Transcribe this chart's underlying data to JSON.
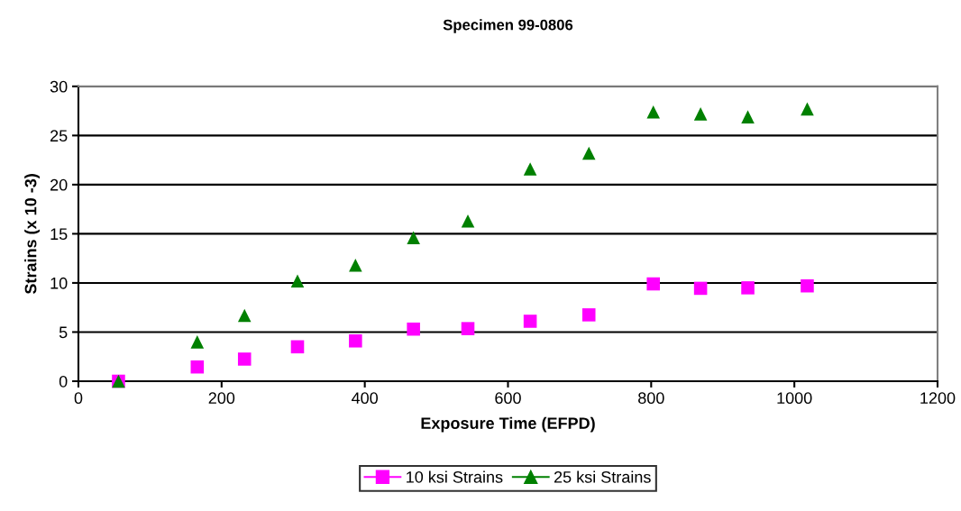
{
  "chart_data": {
    "type": "scatter",
    "title": "Specimen 99-0806",
    "xlabel": "Exposure Time (EFPD)",
    "ylabel": "Strains (x 10 -3)",
    "xlim": [
      0,
      1200
    ],
    "xticks": [
      0,
      200,
      400,
      600,
      800,
      1000,
      1200
    ],
    "ylim": [
      0,
      30
    ],
    "yticks": [
      0,
      5,
      10,
      15,
      20,
      25,
      30
    ],
    "grid": "y",
    "legend": "bottom",
    "series": [
      {
        "name": "10 ksi Strains",
        "color": "#ff00ff",
        "marker": "square",
        "x": [
          56,
          166,
          232,
          306,
          387,
          468,
          544,
          631,
          713,
          803,
          869,
          935,
          1018
        ],
        "values": [
          0,
          1.45,
          2.25,
          3.5,
          4.1,
          5.3,
          5.35,
          6.1,
          6.75,
          9.9,
          9.45,
          9.5,
          9.7
        ]
      },
      {
        "name": "25 ksi Strains",
        "color": "#008000",
        "marker": "triangle",
        "x": [
          56,
          166,
          232,
          306,
          387,
          468,
          544,
          631,
          713,
          803,
          869,
          935,
          1018
        ],
        "values": [
          0,
          4.0,
          6.7,
          10.2,
          11.8,
          14.6,
          16.3,
          21.6,
          23.2,
          27.4,
          27.2,
          26.9,
          27.7
        ]
      }
    ]
  }
}
